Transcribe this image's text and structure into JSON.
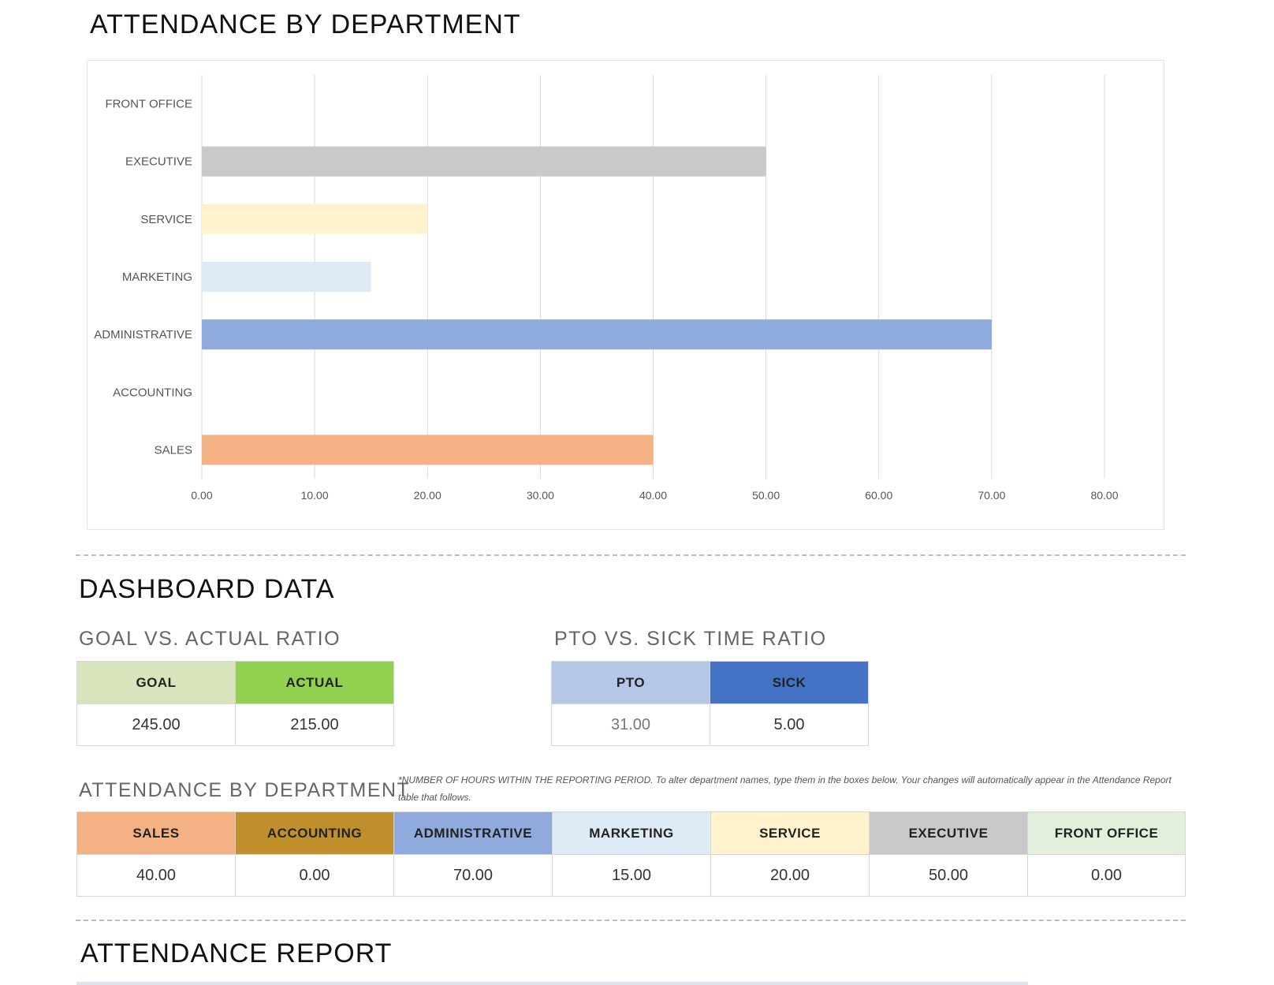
{
  "chart_section": {
    "title": "ATTENDANCE BY DEPARTMENT"
  },
  "chart_data": {
    "type": "bar",
    "orientation": "horizontal",
    "categories": [
      "FRONT OFFICE",
      "EXECUTIVE",
      "SERVICE",
      "MARKETING",
      "ADMINISTRATIVE",
      "ACCOUNTING",
      "SALES"
    ],
    "values": [
      0,
      50,
      20,
      15,
      70,
      0,
      40
    ],
    "colors": [
      "#e2efda",
      "#c9c9c9",
      "#fff2cc",
      "#deebf7",
      "#8faadc",
      "#bf8f2b",
      "#f4b183"
    ],
    "xlim": [
      0,
      80
    ],
    "xticks": [
      "0.00",
      "10.00",
      "20.00",
      "30.00",
      "40.00",
      "50.00",
      "60.00",
      "70.00",
      "80.00"
    ],
    "grid": true,
    "legend": "none"
  },
  "dashboard": {
    "title": "DASHBOARD DATA",
    "goal_actual": {
      "title": "GOAL VS. ACTUAL RATIO",
      "headers": [
        "GOAL",
        "ACTUAL"
      ],
      "values": [
        "245.00",
        "215.00"
      ],
      "header_colors": [
        "#d8e4bc",
        "#92d050"
      ]
    },
    "pto_sick": {
      "title": "PTO VS. SICK TIME RATIO",
      "headers": [
        "PTO",
        "SICK"
      ],
      "values": [
        "31.00",
        "5.00"
      ],
      "header_colors": [
        "#b4c7e7",
        "#4472c4"
      ]
    },
    "attendance": {
      "title": "ATTENDANCE BY DEPARTMENT",
      "note": "*NUMBER OF HOURS WITHIN THE REPORTING PERIOD. To alter department names, type them in the boxes below. Your changes will automatically appear in the Attendance Report table that follows.",
      "headers": [
        "SALES",
        "ACCOUNTING",
        "ADMINISTRATIVE",
        "MARKETING",
        "SERVICE",
        "EXECUTIVE",
        "FRONT OFFICE"
      ],
      "values": [
        "40.00",
        "0.00",
        "70.00",
        "15.00",
        "20.00",
        "50.00",
        "0.00"
      ],
      "header_colors": [
        "#f4b183",
        "#bf8f2b",
        "#8faadc",
        "#deebf7",
        "#fff2cc",
        "#c9c9c9",
        "#e2efda"
      ]
    }
  },
  "report": {
    "title": "ATTENDANCE REPORT"
  }
}
